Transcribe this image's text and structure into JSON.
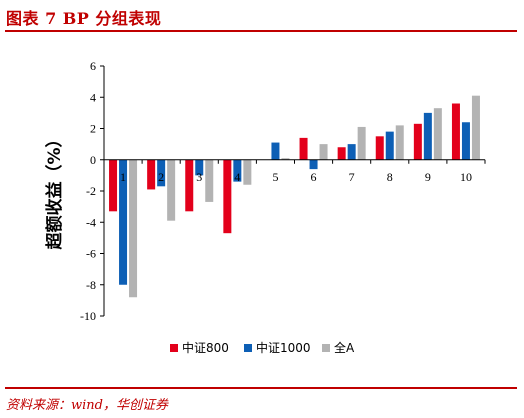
{
  "header": {
    "title": "图表 7  BP 分组表现"
  },
  "footer": {
    "source": "资料来源：wind，华创证券"
  },
  "chart_data": {
    "type": "bar",
    "title": "",
    "xlabel": "",
    "ylabel": "超额收益（%）",
    "ylim": [
      -10,
      6
    ],
    "yticks": [
      6,
      4,
      2,
      0,
      -2,
      -4,
      -6,
      -8,
      -10
    ],
    "categories": [
      "1",
      "2",
      "3",
      "4",
      "5",
      "6",
      "7",
      "8",
      "9",
      "10"
    ],
    "grid": false,
    "legend_position": "bottom",
    "series": [
      {
        "name": "中证800",
        "color": "#e3001b",
        "values": [
          -3.3,
          -1.9,
          -3.3,
          -4.7,
          0.0,
          1.4,
          0.8,
          1.5,
          2.3,
          3.6
        ]
      },
      {
        "name": "中证1000",
        "color": "#0d5fb5",
        "values": [
          -8.0,
          -1.7,
          -1.0,
          -1.4,
          1.1,
          -0.6,
          1.0,
          1.8,
          3.0,
          2.4
        ]
      },
      {
        "name": "全A",
        "color": "#b3b3b3",
        "values": [
          -8.8,
          -3.9,
          -2.7,
          -1.6,
          0.1,
          1.0,
          2.1,
          2.2,
          3.3,
          4.1
        ]
      }
    ]
  }
}
